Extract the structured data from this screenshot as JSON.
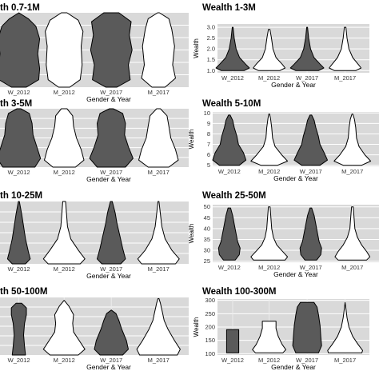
{
  "chart_data": [
    {
      "type": "violin",
      "title": "th 0.7-1M",
      "xlabel": "Gender & Year",
      "ylabel": "",
      "categories": [
        "W_2012",
        "M_2012",
        "W_2017",
        "M_2017"
      ],
      "yticks": [],
      "ylim": [
        0,
        1
      ],
      "fills": [
        "#5a5a5a",
        "#ffffff",
        "#5a5a5a",
        "#ffffff"
      ],
      "shapes": [
        [
          [
            0.0,
            0.16
          ],
          [
            0.1,
            0.42
          ],
          [
            0.25,
            0.44
          ],
          [
            0.45,
            0.4
          ],
          [
            0.65,
            0.44
          ],
          [
            0.82,
            0.36
          ],
          [
            0.92,
            0.2
          ],
          [
            1.0,
            0.0
          ]
        ],
        [
          [
            0.0,
            0.12
          ],
          [
            0.1,
            0.34
          ],
          [
            0.3,
            0.38
          ],
          [
            0.55,
            0.36
          ],
          [
            0.75,
            0.4
          ],
          [
            0.9,
            0.3
          ],
          [
            1.0,
            0.06
          ]
        ],
        [
          [
            0.0,
            0.12
          ],
          [
            0.1,
            0.4
          ],
          [
            0.3,
            0.36
          ],
          [
            0.5,
            0.44
          ],
          [
            0.7,
            0.38
          ],
          [
            0.88,
            0.42
          ],
          [
            1.0,
            0.16
          ]
        ],
        [
          [
            0.0,
            0.14
          ],
          [
            0.12,
            0.36
          ],
          [
            0.3,
            0.3
          ],
          [
            0.55,
            0.34
          ],
          [
            0.78,
            0.28
          ],
          [
            0.92,
            0.22
          ],
          [
            1.0,
            0.02
          ]
        ]
      ]
    },
    {
      "type": "violin",
      "title": "Wealth 1-3M",
      "xlabel": "Gender & Year",
      "ylabel": "Wealth",
      "categories": [
        "W_2012",
        "M_2012",
        "W_2017",
        "M_2017"
      ],
      "yticks": [
        1.0,
        1.5,
        2.0,
        2.5,
        3.0
      ],
      "ylim": [
        0.9,
        3.15
      ],
      "fills": [
        "#5a5a5a",
        "#ffffff",
        "#5a5a5a",
        "#ffffff"
      ],
      "shapes": [
        [
          [
            1.0,
            0.3
          ],
          [
            1.12,
            0.44
          ],
          [
            1.3,
            0.34
          ],
          [
            1.6,
            0.18
          ],
          [
            2.0,
            0.09
          ],
          [
            2.5,
            0.04
          ],
          [
            3.0,
            0.01
          ]
        ],
        [
          [
            1.0,
            0.28
          ],
          [
            1.12,
            0.42
          ],
          [
            1.3,
            0.34
          ],
          [
            1.6,
            0.18
          ],
          [
            2.0,
            0.1
          ],
          [
            2.5,
            0.06
          ],
          [
            2.9,
            0.02
          ]
        ],
        [
          [
            1.0,
            0.3
          ],
          [
            1.12,
            0.44
          ],
          [
            1.3,
            0.34
          ],
          [
            1.6,
            0.18
          ],
          [
            2.0,
            0.09
          ],
          [
            2.5,
            0.04
          ],
          [
            3.0,
            0.01
          ]
        ],
        [
          [
            1.0,
            0.28
          ],
          [
            1.12,
            0.42
          ],
          [
            1.3,
            0.34
          ],
          [
            1.6,
            0.2
          ],
          [
            2.0,
            0.1
          ],
          [
            2.5,
            0.05
          ],
          [
            3.0,
            0.02
          ]
        ]
      ]
    },
    {
      "type": "violin",
      "title": "th 3-5M",
      "xlabel": "Gender & Year",
      "ylabel": "",
      "categories": [
        "W_2012",
        "M_2012",
        "W_2017",
        "M_2017"
      ],
      "yticks": [],
      "ylim": [
        0,
        1
      ],
      "fills": [
        "#5a5a5a",
        "#ffffff",
        "#5a5a5a",
        "#ffffff"
      ],
      "shapes": [
        [
          [
            0.0,
            0.34
          ],
          [
            0.15,
            0.46
          ],
          [
            0.35,
            0.38
          ],
          [
            0.55,
            0.3
          ],
          [
            0.75,
            0.28
          ],
          [
            0.92,
            0.22
          ],
          [
            1.0,
            0.04
          ]
        ],
        [
          [
            0.0,
            0.24
          ],
          [
            0.12,
            0.42
          ],
          [
            0.3,
            0.36
          ],
          [
            0.5,
            0.26
          ],
          [
            0.7,
            0.2
          ],
          [
            0.88,
            0.18
          ],
          [
            1.0,
            0.06
          ]
        ],
        [
          [
            0.0,
            0.3
          ],
          [
            0.15,
            0.46
          ],
          [
            0.35,
            0.36
          ],
          [
            0.55,
            0.28
          ],
          [
            0.75,
            0.3
          ],
          [
            0.92,
            0.24
          ],
          [
            1.0,
            0.04
          ]
        ],
        [
          [
            0.0,
            0.22
          ],
          [
            0.12,
            0.42
          ],
          [
            0.3,
            0.36
          ],
          [
            0.5,
            0.26
          ],
          [
            0.7,
            0.22
          ],
          [
            0.88,
            0.18
          ],
          [
            1.0,
            0.04
          ]
        ]
      ]
    },
    {
      "type": "violin",
      "title": "Wealth 5-10M",
      "xlabel": "Gender & Year",
      "ylabel": "Wealth",
      "categories": [
        "W_2012",
        "M_2012",
        "W_2017",
        "M_2017"
      ],
      "yticks": [
        5,
        6,
        7,
        8,
        9,
        10
      ],
      "ylim": [
        4.9,
        10.1
      ],
      "fills": [
        "#5a5a5a",
        "#ffffff",
        "#5a5a5a",
        "#ffffff"
      ],
      "shapes": [
        [
          [
            5.0,
            0.24
          ],
          [
            5.5,
            0.4
          ],
          [
            6.2,
            0.34
          ],
          [
            7.0,
            0.22
          ],
          [
            7.8,
            0.18
          ],
          [
            8.6,
            0.12
          ],
          [
            9.3,
            0.08
          ],
          [
            9.8,
            0.02
          ]
        ],
        [
          [
            5.0,
            0.2
          ],
          [
            5.4,
            0.44
          ],
          [
            6.0,
            0.3
          ],
          [
            6.8,
            0.14
          ],
          [
            7.6,
            0.08
          ],
          [
            8.6,
            0.06
          ],
          [
            9.5,
            0.03
          ],
          [
            9.9,
            0.01
          ]
        ],
        [
          [
            5.0,
            0.22
          ],
          [
            5.5,
            0.4
          ],
          [
            6.2,
            0.32
          ],
          [
            7.0,
            0.22
          ],
          [
            7.8,
            0.18
          ],
          [
            8.6,
            0.12
          ],
          [
            9.3,
            0.08
          ],
          [
            9.8,
            0.02
          ]
        ],
        [
          [
            5.0,
            0.22
          ],
          [
            5.4,
            0.44
          ],
          [
            6.0,
            0.3
          ],
          [
            6.8,
            0.16
          ],
          [
            7.6,
            0.1
          ],
          [
            8.6,
            0.08
          ],
          [
            9.4,
            0.05
          ],
          [
            9.9,
            0.01
          ]
        ]
      ]
    },
    {
      "type": "violin",
      "title": "th 10-25M",
      "xlabel": "Gender & Year",
      "ylabel": "",
      "categories": [
        "W_2012",
        "M_2012",
        "W_2017",
        "M_2017"
      ],
      "yticks": [],
      "ylim": [
        0,
        1
      ],
      "fills": [
        "#5a5a5a",
        "#ffffff",
        "#5a5a5a",
        "#ffffff"
      ],
      "shapes": [
        [
          [
            0.0,
            0.14
          ],
          [
            0.08,
            0.24
          ],
          [
            0.2,
            0.2
          ],
          [
            0.4,
            0.14
          ],
          [
            0.6,
            0.1
          ],
          [
            0.8,
            0.06
          ],
          [
            1.0,
            0.01
          ]
        ],
        [
          [
            0.0,
            0.34
          ],
          [
            0.08,
            0.44
          ],
          [
            0.22,
            0.3
          ],
          [
            0.4,
            0.14
          ],
          [
            0.6,
            0.07
          ],
          [
            0.8,
            0.05
          ],
          [
            1.0,
            0.03
          ]
        ],
        [
          [
            0.0,
            0.2
          ],
          [
            0.08,
            0.3
          ],
          [
            0.25,
            0.24
          ],
          [
            0.45,
            0.18
          ],
          [
            0.65,
            0.12
          ],
          [
            0.82,
            0.08
          ],
          [
            1.0,
            0.02
          ]
        ],
        [
          [
            0.0,
            0.36
          ],
          [
            0.08,
            0.44
          ],
          [
            0.22,
            0.28
          ],
          [
            0.4,
            0.14
          ],
          [
            0.6,
            0.07
          ],
          [
            0.8,
            0.04
          ],
          [
            1.0,
            0.01
          ]
        ]
      ]
    },
    {
      "type": "violin",
      "title": "Wealth 25-50M",
      "xlabel": "Gender & Year",
      "ylabel": "Wealth",
      "categories": [
        "W_2012",
        "M_2012",
        "W_2017",
        "M_2017"
      ],
      "yticks": [
        25,
        30,
        35,
        40,
        45,
        50
      ],
      "ylim": [
        24.5,
        51
      ],
      "fills": [
        "#5a5a5a",
        "#ffffff",
        "#5a5a5a",
        "#ffffff"
      ],
      "shapes": [
        [
          [
            25.5,
            0.14
          ],
          [
            28,
            0.24
          ],
          [
            31,
            0.26
          ],
          [
            34,
            0.2
          ],
          [
            38,
            0.16
          ],
          [
            42,
            0.12
          ],
          [
            46,
            0.08
          ],
          [
            49.5,
            0.03
          ]
        ],
        [
          [
            25.5,
            0.38
          ],
          [
            27,
            0.44
          ],
          [
            29.5,
            0.32
          ],
          [
            32.5,
            0.18
          ],
          [
            36,
            0.1
          ],
          [
            40,
            0.06
          ],
          [
            45,
            0.04
          ],
          [
            50,
            0.02
          ]
        ],
        [
          [
            25.5,
            0.14
          ],
          [
            28,
            0.24
          ],
          [
            31,
            0.26
          ],
          [
            34,
            0.2
          ],
          [
            38,
            0.16
          ],
          [
            42,
            0.12
          ],
          [
            46,
            0.08
          ],
          [
            49.5,
            0.02
          ]
        ],
        [
          [
            25.5,
            0.34
          ],
          [
            27,
            0.42
          ],
          [
            29.5,
            0.34
          ],
          [
            32.5,
            0.22
          ],
          [
            36,
            0.12
          ],
          [
            40,
            0.06
          ],
          [
            45,
            0.04
          ],
          [
            50,
            0.02
          ]
        ]
      ]
    },
    {
      "type": "violin",
      "title": "th 50-100M",
      "xlabel": "Gender & Year",
      "ylabel": "",
      "categories": [
        "W_2012",
        "M_2012",
        "W_2017",
        "M_2017"
      ],
      "yticks": [],
      "ylim": [
        0,
        1
      ],
      "fills": [
        "#5a5a5a",
        "#ffffff",
        "#5a5a5a",
        "#ffffff"
      ],
      "shapes": [
        [
          [
            0.0,
            0.14
          ],
          [
            0.15,
            0.12
          ],
          [
            0.35,
            0.1
          ],
          [
            0.55,
            0.12
          ],
          [
            0.7,
            0.16
          ],
          [
            0.82,
            0.16
          ],
          [
            0.9,
            0.06
          ]
        ],
        [
          [
            0.0,
            0.3
          ],
          [
            0.1,
            0.44
          ],
          [
            0.25,
            0.32
          ],
          [
            0.4,
            0.2
          ],
          [
            0.55,
            0.18
          ],
          [
            0.7,
            0.2
          ],
          [
            0.85,
            0.1
          ],
          [
            0.95,
            0.0
          ]
        ],
        [
          [
            0.0,
            0.24
          ],
          [
            0.1,
            0.36
          ],
          [
            0.25,
            0.32
          ],
          [
            0.45,
            0.22
          ],
          [
            0.6,
            0.16
          ],
          [
            0.72,
            0.1
          ],
          [
            0.78,
            0.0
          ]
        ],
        [
          [
            0.0,
            0.4
          ],
          [
            0.1,
            0.46
          ],
          [
            0.25,
            0.34
          ],
          [
            0.45,
            0.2
          ],
          [
            0.6,
            0.12
          ],
          [
            0.75,
            0.08
          ],
          [
            0.9,
            0.04
          ],
          [
            0.98,
            0.01
          ]
        ]
      ]
    },
    {
      "type": "violin",
      "title": "Wealth 100-300M",
      "xlabel": "Gender & Year",
      "ylabel": "Wealth",
      "categories": [
        "W_2012",
        "M_2012",
        "W_2017",
        "M_2017"
      ],
      "yticks": [
        100,
        150,
        200,
        250,
        300
      ],
      "ylim": [
        95,
        305
      ],
      "fills": [
        "#5a5a5a",
        "#ffffff",
        "#5a5a5a",
        "#ffffff"
      ],
      "shapes": [
        [
          [
            103,
            0.16
          ],
          [
            190,
            0.16
          ]
        ],
        [
          [
            103,
            0.36
          ],
          [
            115,
            0.44
          ],
          [
            135,
            0.34
          ],
          [
            165,
            0.24
          ],
          [
            195,
            0.18
          ],
          [
            222,
            0.18
          ]
        ],
        [
          [
            103,
            0.3
          ],
          [
            130,
            0.38
          ],
          [
            165,
            0.36
          ],
          [
            205,
            0.34
          ],
          [
            245,
            0.3
          ],
          [
            275,
            0.26
          ],
          [
            292,
            0.18
          ]
        ],
        [
          [
            103,
            0.44
          ],
          [
            112,
            0.46
          ],
          [
            135,
            0.34
          ],
          [
            165,
            0.2
          ],
          [
            200,
            0.1
          ],
          [
            235,
            0.05
          ],
          [
            270,
            0.02
          ],
          [
            292,
            0.0
          ]
        ]
      ]
    }
  ]
}
